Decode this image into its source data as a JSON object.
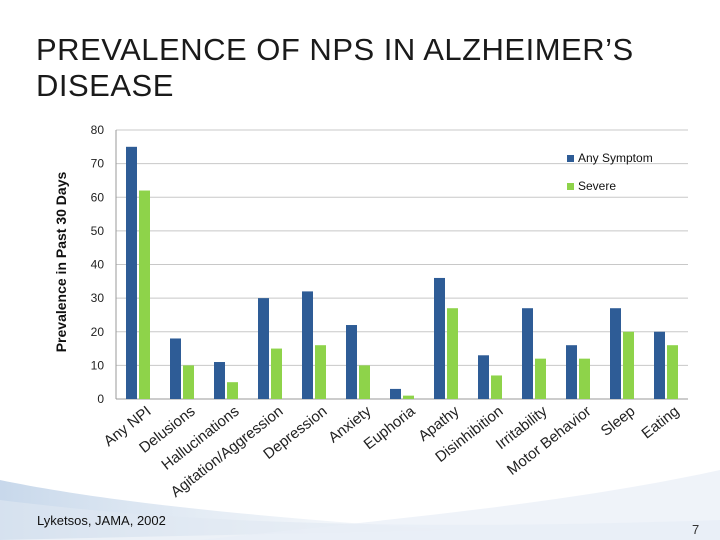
{
  "slide": {
    "title": "PREVALENCE OF NPS IN ALZHEIMER’S DISEASE",
    "source": "Lyketsos, JAMA, 2002",
    "page_number": "7"
  },
  "colors": {
    "any": "#2E5C96",
    "severe": "#8ED34A",
    "grid": "#c8c8c8",
    "axis": "#999999"
  },
  "chart_data": {
    "type": "bar",
    "title": "",
    "xlabel": "",
    "ylabel": "Prevalence in Past 30 Days",
    "ylim": [
      0,
      80
    ],
    "yticks": [
      0,
      10,
      20,
      30,
      40,
      50,
      60,
      70,
      80
    ],
    "legend_position": "top-right",
    "grid": true,
    "categories": [
      "Any NPI",
      "Delusions",
      "Hallucinations",
      "Agitation/Aggression",
      "Depression",
      "Anxiety",
      "Euphoria",
      "Apathy",
      "Disinhibition",
      "Irritability",
      "Motor Behavior",
      "Sleep",
      "Eating"
    ],
    "series": [
      {
        "name": "Any Symptom",
        "values": [
          75,
          18,
          11,
          30,
          32,
          22,
          3,
          36,
          13,
          27,
          16,
          27,
          20
        ]
      },
      {
        "name": "Severe",
        "values": [
          62,
          10,
          5,
          15,
          16,
          10,
          1,
          27,
          7,
          12,
          12,
          20,
          16
        ]
      }
    ]
  }
}
